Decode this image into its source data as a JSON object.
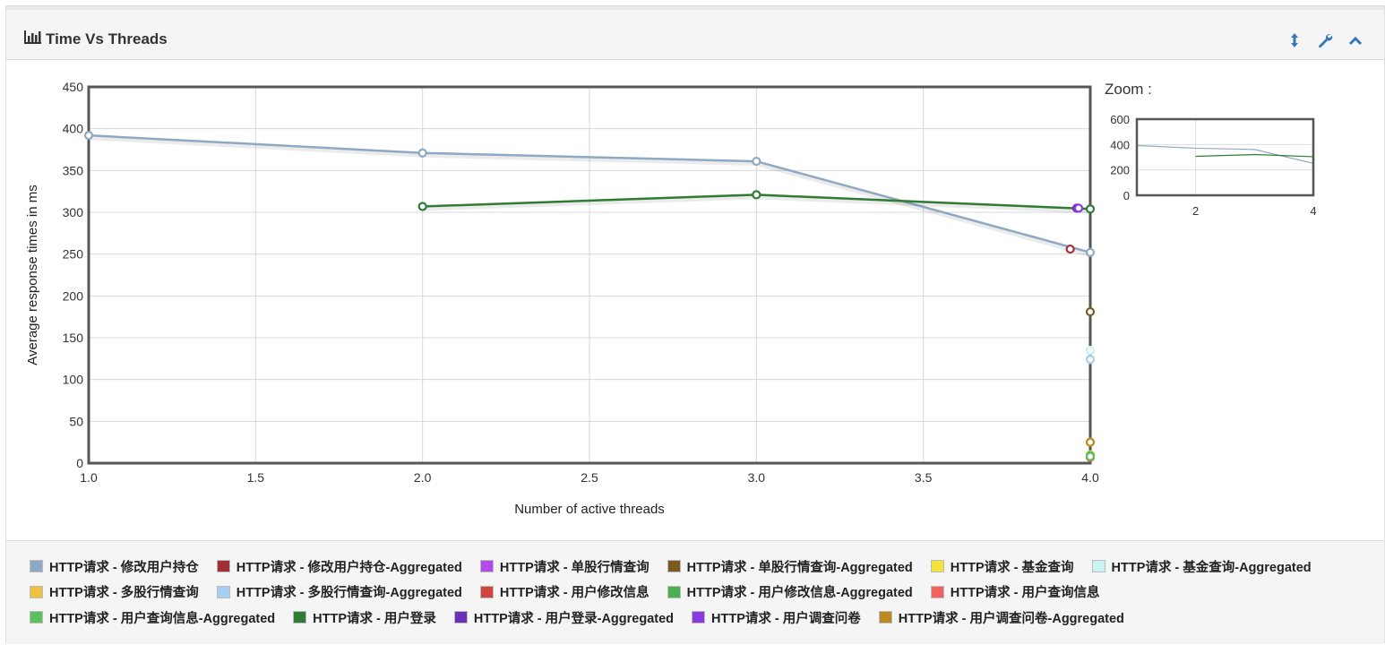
{
  "header": {
    "title": "Time Vs Threads",
    "title_icon": "bar-chart-icon",
    "tools": [
      "resize-vertical-icon",
      "wrench-icon",
      "chevron-up-icon"
    ]
  },
  "zoom": {
    "label": "Zoom :",
    "y_ticks": [
      "600",
      "400",
      "200",
      "0"
    ],
    "x_ticks": [
      "2",
      "4"
    ]
  },
  "chart_data": {
    "type": "line",
    "title": "Time Vs Threads",
    "xlabel": "Number of active threads",
    "ylabel": "Average response times in ms",
    "xlim": [
      1.0,
      4.0
    ],
    "ylim": [
      0,
      450
    ],
    "x_ticks": [
      "1.0",
      "1.5",
      "2.0",
      "2.5",
      "3.0",
      "3.5",
      "4.0"
    ],
    "y_ticks": [
      "0",
      "50",
      "100",
      "150",
      "200",
      "250",
      "300",
      "350",
      "400",
      "450"
    ],
    "grid": true,
    "series": [
      {
        "name": "HTTP请求 - 修改用户持仓",
        "color": "#8fa9c4",
        "points": [
          [
            1.0,
            392
          ],
          [
            2.0,
            371
          ],
          [
            3.0,
            361
          ],
          [
            4.0,
            252
          ]
        ]
      },
      {
        "name": "HTTP请求 - 修改用户持仓-Aggregated",
        "color": "#a0303a",
        "points": [
          [
            3.94,
            256
          ]
        ]
      },
      {
        "name": "HTTP请求 - 单股行情查询",
        "color": "#b34bea",
        "points": [
          [
            3.96,
            305
          ]
        ]
      },
      {
        "name": "HTTP请求 - 单股行情查询-Aggregated",
        "color": "#7a5c22",
        "points": [
          [
            4.0,
            181
          ]
        ]
      },
      {
        "name": "HTTP请求 - 基金查询",
        "color": "#f3e33a",
        "points": [
          [
            4.0,
            10
          ]
        ]
      },
      {
        "name": "HTTP请求 - 基金查询-Aggregated",
        "color": "#c9f4f2",
        "points": [
          [
            4.0,
            135
          ]
        ]
      },
      {
        "name": "HTTP请求 - 多股行情查询",
        "color": "#f0c040",
        "points": [
          [
            4.0,
            25
          ]
        ]
      },
      {
        "name": "HTTP请求 - 多股行情查询-Aggregated",
        "color": "#a8cff2",
        "points": [
          [
            4.0,
            124
          ]
        ]
      },
      {
        "name": "HTTP请求 - 用户修改信息",
        "color": "#d0433e",
        "points": [
          [
            4.0,
            8
          ]
        ]
      },
      {
        "name": "HTTP请求 - 用户修改信息-Aggregated",
        "color": "#4caf50",
        "points": [
          [
            4.0,
            9
          ]
        ]
      },
      {
        "name": "HTTP请求 - 用户查询信息",
        "color": "#f36060",
        "points": [
          [
            4.0,
            7
          ]
        ]
      },
      {
        "name": "HTTP请求 - 用户查询信息-Aggregated",
        "color": "#5cc060",
        "points": [
          [
            4.0,
            8
          ]
        ]
      },
      {
        "name": "HTTP请求 - 用户登录",
        "color": "#2e7d32",
        "points": [
          [
            2.0,
            307
          ],
          [
            3.0,
            321
          ],
          [
            4.0,
            304
          ]
        ]
      },
      {
        "name": "HTTP请求 - 用户登录-Aggregated",
        "color": "#6a30b8",
        "points": [
          [
            3.96,
            305
          ]
        ]
      },
      {
        "name": "HTTP请求 - 用户调查问卷",
        "color": "#8a3ae0",
        "points": [
          [
            3.965,
            305
          ]
        ]
      },
      {
        "name": "HTTP请求 - 用户调查问卷-Aggregated",
        "color": "#b88a20",
        "points": [
          [
            4.0,
            25
          ]
        ]
      }
    ]
  },
  "legend": {
    "rows": [
      [
        {
          "label": "HTTP请求 - 修改用户持仓",
          "color": "#8fa9c4"
        },
        {
          "label": "HTTP请求 - 修改用户持仓-Aggregated",
          "color": "#a0303a"
        },
        {
          "label": "HTTP请求 - 单股行情查询",
          "color": "#b34bea"
        },
        {
          "label": "HTTP请求 - 单股行情查询-Aggregated",
          "color": "#7a5c22"
        },
        {
          "label": "HTTP请求 - 基金查询",
          "color": "#f3e33a"
        },
        {
          "label": "HTTP请求 - 基金查询-Aggregated",
          "color": "#c9f4f2"
        }
      ],
      [
        {
          "label": "HTTP请求 - 多股行情查询",
          "color": "#f0c040"
        },
        {
          "label": "HTTP请求 - 多股行情查询-Aggregated",
          "color": "#a8cff2"
        },
        {
          "label": "HTTP请求 - 用户修改信息",
          "color": "#d0433e"
        },
        {
          "label": "HTTP请求 - 用户修改信息-Aggregated",
          "color": "#4caf50"
        },
        {
          "label": "HTTP请求 - 用户查询信息",
          "color": "#f36060"
        }
      ],
      [
        {
          "label": "HTTP请求 - 用户查询信息-Aggregated",
          "color": "#5cc060"
        },
        {
          "label": "HTTP请求 - 用户登录",
          "color": "#2e7d32"
        },
        {
          "label": "HTTP请求 - 用户登录-Aggregated",
          "color": "#6a30b8"
        },
        {
          "label": "HTTP请求 - 用户调查问卷",
          "color": "#8a3ae0"
        },
        {
          "label": "HTTP请求 - 用户调查问卷-Aggregated",
          "color": "#b88a20"
        }
      ]
    ]
  }
}
